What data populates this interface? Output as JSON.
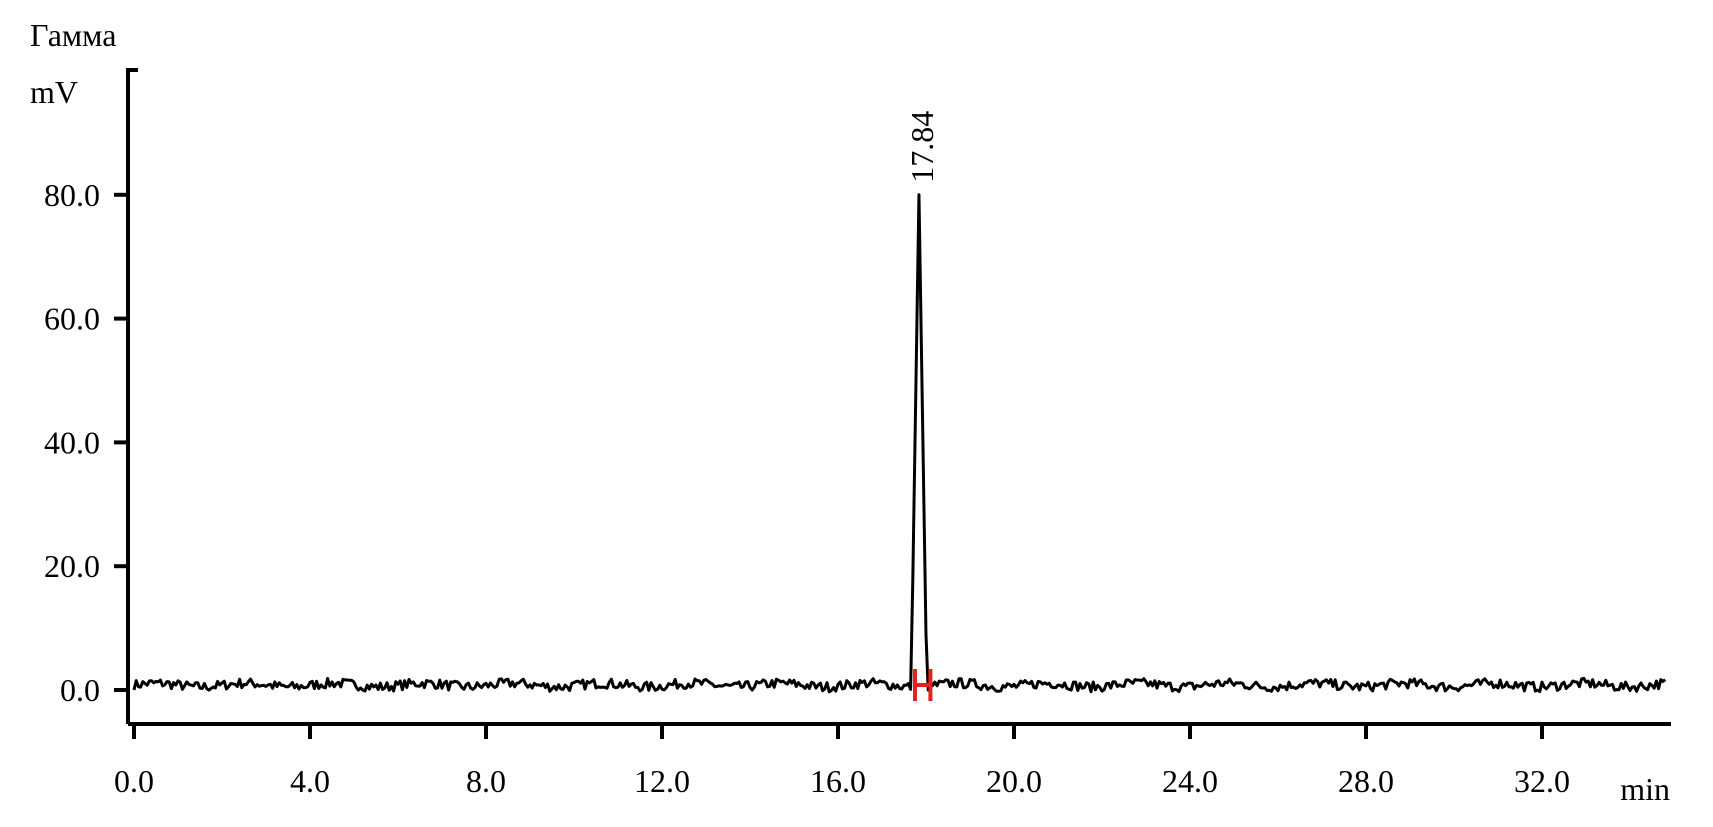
{
  "chart_data": {
    "type": "line",
    "title": "Гамма",
    "ylabel": "mV",
    "xlabel": "min",
    "xlim": [
      0,
      35
    ],
    "ylim": [
      -5,
      95
    ],
    "xticks": [
      0,
      4,
      8,
      12,
      16,
      20,
      24,
      28,
      32
    ],
    "xtick_labels": [
      "0.0",
      "4.0",
      "8.0",
      "12.0",
      "16.0",
      "20.0",
      "24.0",
      "28.0",
      "32.0"
    ],
    "yticks": [
      0,
      20,
      40,
      60,
      80
    ],
    "ytick_labels": [
      "0.0",
      "20.0",
      "40.0",
      "60.0",
      "80.0"
    ],
    "grid": false,
    "peaks": [
      {
        "retention_time": 17.84,
        "label": "17.84",
        "height": 80.0,
        "start": 17.75,
        "end": 18.1
      }
    ],
    "colors": {
      "trace": "#000000",
      "integration_marker": "#e82020"
    }
  }
}
